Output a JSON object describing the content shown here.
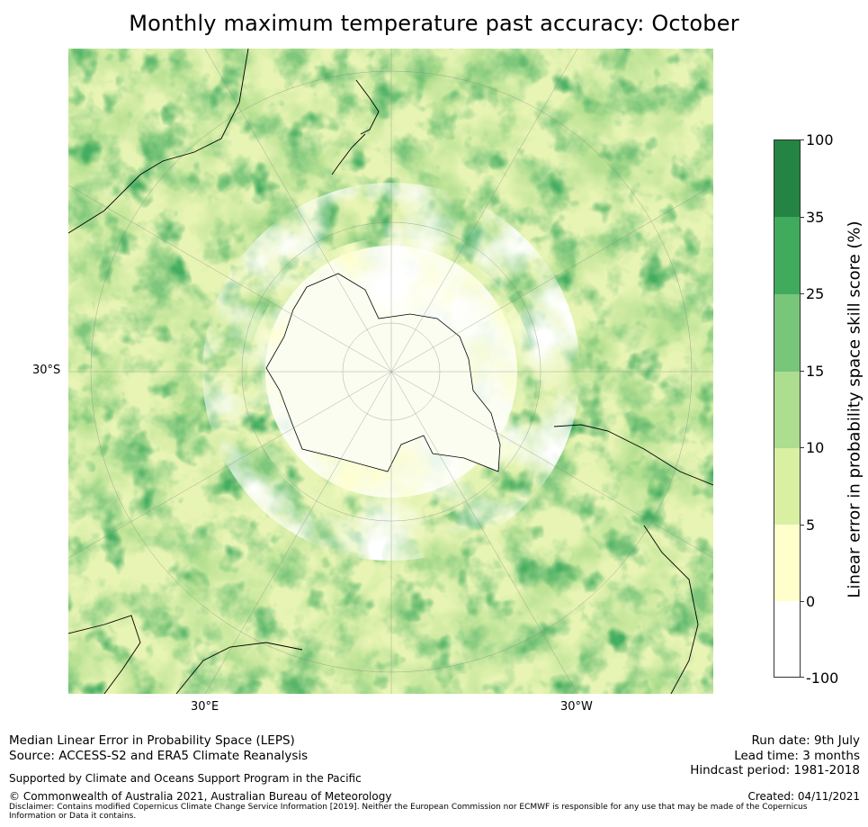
{
  "title": "Monthly maximum temperature past accuracy: October",
  "map": {
    "projection": "south-polar-stereographic",
    "lat_labels": [
      "30°S"
    ],
    "lon_labels": [
      "30°E",
      "30°W"
    ],
    "icon": "antarctica-centered-map"
  },
  "colorbar": {
    "title": "Linear error in probability space skill score (%)",
    "levels": [
      "-100",
      "0",
      "5",
      "10",
      "15",
      "25",
      "35",
      "100"
    ],
    "colors": [
      "#ffffff",
      "#ffffcc",
      "#d9f0a3",
      "#addd8e",
      "#78c679",
      "#41ab5d",
      "#238443"
    ]
  },
  "footer": {
    "left_line1": "Median Linear Error in Probability Space (LEPS)",
    "left_line2": "Source: ACCESS-S2 and ERA5 Climate Reanalysis",
    "support": "Supported by Climate and Oceans Support Program in the Pacific",
    "copyright": "© Commonwealth of Australia 2021, Australian Bureau of Meteorology",
    "disclaimer": "Disclaimer: Contains modified Copernicus Climate Change Service Information [2019]. Neither the European Commission nor ECMWF is responsible for any use that may be made of the Copernicus Information or Data it contains.",
    "run_date": "Run date: 9th July",
    "lead_time": "Lead time: 3 months",
    "hindcast": "Hindcast period: 1981-2018",
    "created": "Created: 04/11/2021"
  }
}
